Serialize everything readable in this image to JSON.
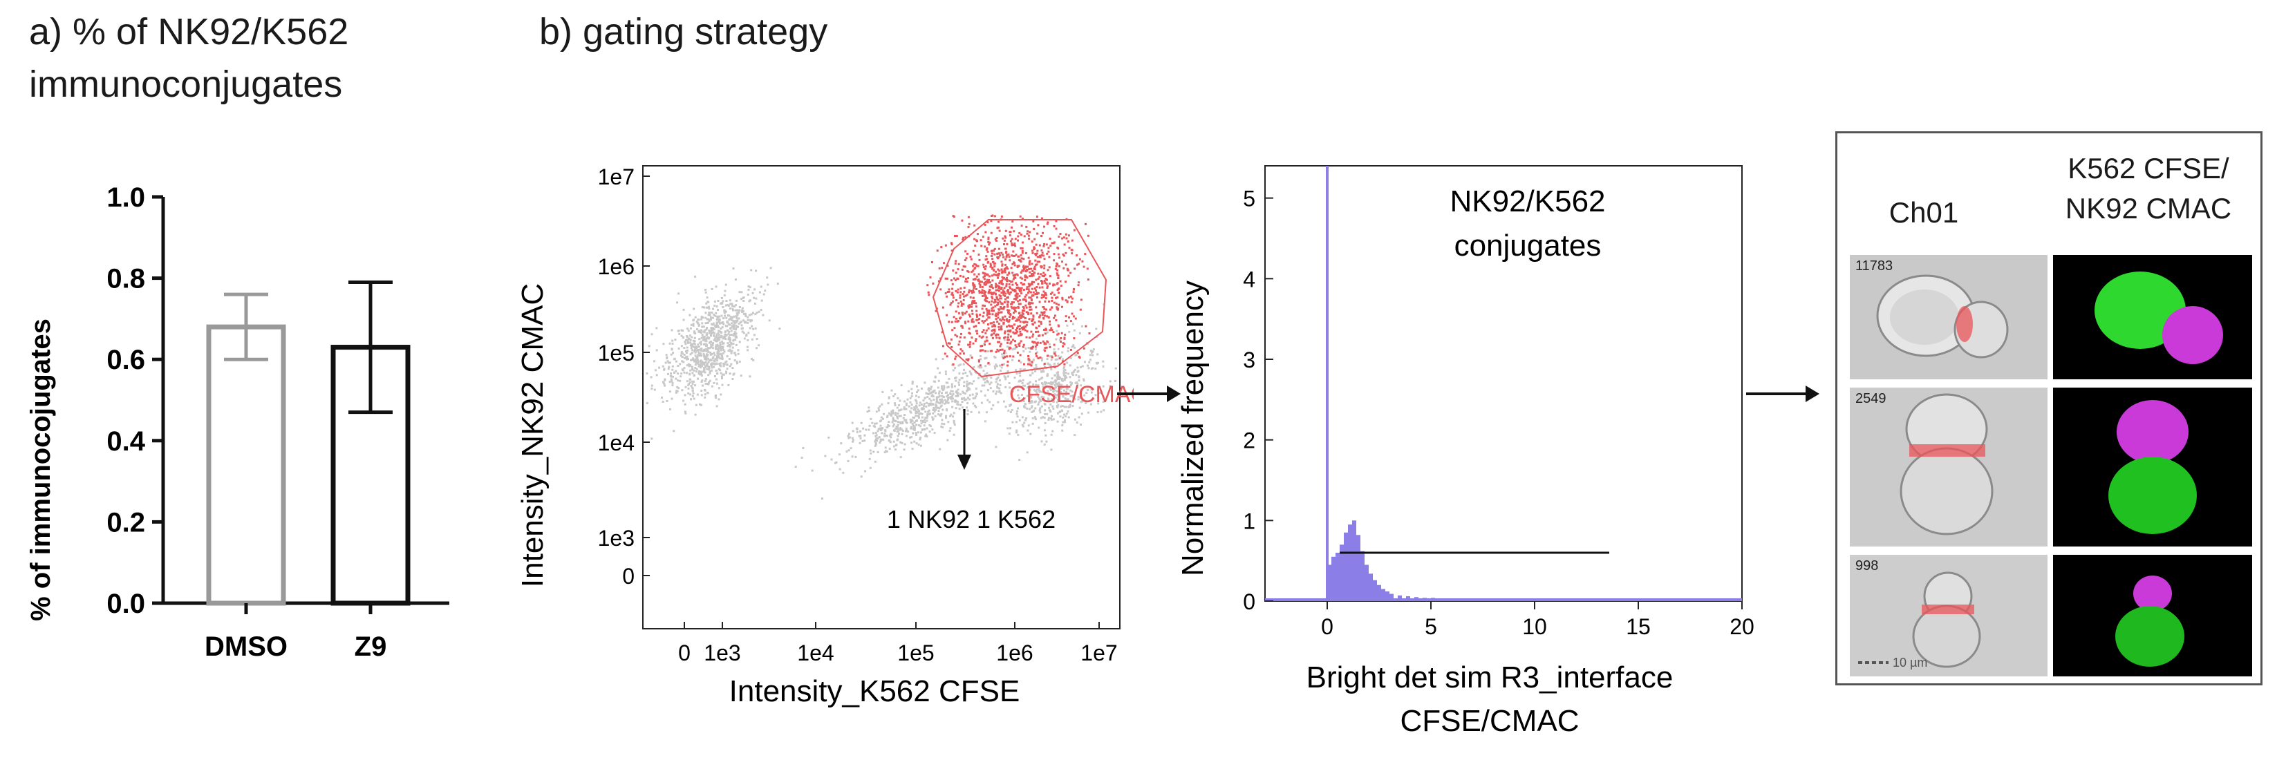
{
  "panel_a": {
    "title_line1": "a) % of NK92/K562",
    "title_line2": "immunoconjugates"
  },
  "panel_b": {
    "title": "b) gating strategy"
  },
  "chart_data": [
    {
      "type": "bar",
      "title": "% of NK92/K562 immunoconjugates",
      "xlabel": "",
      "ylabel": "% of immunocojugates",
      "categories": [
        "DMSO",
        "Z9"
      ],
      "values": [
        0.68,
        0.63
      ],
      "error_low": [
        0.6,
        0.47
      ],
      "error_high": [
        0.76,
        0.79
      ],
      "bar_edge_colors": [
        "#999999",
        "#111111"
      ],
      "ylim": [
        0,
        1.0
      ],
      "yticks": [
        "0.0",
        "0.2",
        "0.4",
        "0.6",
        "0.8",
        "1.0"
      ],
      "ytick_values": [
        0,
        0.2,
        0.4,
        0.6,
        0.8,
        1.0
      ]
    },
    {
      "type": "scatter",
      "title": "",
      "xlabel": "Intensity_K562 CFSE",
      "ylabel": "Intensity_NK92 CMAC",
      "xscale": "log",
      "yscale": "log",
      "xticks": [
        "0",
        "1e3",
        "1e4",
        "1e5",
        "1e6",
        "1e7"
      ],
      "yticks": [
        "0",
        "1e3",
        "1e4",
        "1e5",
        "1e6",
        "1e7"
      ],
      "gate_label": "CFSE/CMAC",
      "gate_color": "#e8565a",
      "background_color": "#c8c8c8",
      "annotation": "1 NK92 1 K562"
    },
    {
      "type": "histogram",
      "title": "",
      "xlabel_line1": "Bright det sim R3_interface",
      "xlabel_line2": "CFSE/CMAC",
      "ylabel": "Normalized frequency",
      "xlim": [
        -3,
        20
      ],
      "ylim": [
        0,
        5.4
      ],
      "xticks": [
        "0",
        "5",
        "10",
        "15",
        "20"
      ],
      "xtick_values": [
        0,
        5,
        10,
        15,
        20
      ],
      "yticks": [
        "0",
        "1",
        "2",
        "3",
        "4",
        "5"
      ],
      "ytick_values": [
        0,
        1,
        2,
        3,
        4,
        5
      ],
      "series_color": "#8b7ee6",
      "gate_label_line1": "NK92/K562",
      "gate_label_line2": "conjugates",
      "gate_range": [
        0.6,
        13.6
      ],
      "gate_level": 0.6,
      "bins": [
        {
          "x": 0.0,
          "y": 0.45
        },
        {
          "x": 0.2,
          "y": 0.55
        },
        {
          "x": 0.4,
          "y": 0.6
        },
        {
          "x": 0.6,
          "y": 0.7
        },
        {
          "x": 0.8,
          "y": 0.85
        },
        {
          "x": 1.0,
          "y": 0.95
        },
        {
          "x": 1.2,
          "y": 1.0
        },
        {
          "x": 1.4,
          "y": 0.82
        },
        {
          "x": 1.6,
          "y": 0.62
        },
        {
          "x": 1.8,
          "y": 0.45
        },
        {
          "x": 2.0,
          "y": 0.34
        },
        {
          "x": 2.2,
          "y": 0.26
        },
        {
          "x": 2.4,
          "y": 0.2
        },
        {
          "x": 2.6,
          "y": 0.15
        },
        {
          "x": 2.8,
          "y": 0.12
        },
        {
          "x": 3.0,
          "y": 0.09
        },
        {
          "x": 3.4,
          "y": 0.07
        },
        {
          "x": 3.8,
          "y": 0.06
        },
        {
          "x": 4.2,
          "y": 0.05
        },
        {
          "x": 4.6,
          "y": 0.04
        },
        {
          "x": 5.0,
          "y": 0.04
        },
        {
          "x": 5.6,
          "y": 0.03
        },
        {
          "x": 6.2,
          "y": 0.03
        },
        {
          "x": 6.8,
          "y": 0.02
        },
        {
          "x": 7.4,
          "y": 0.02
        },
        {
          "x": 8.2,
          "y": 0.01
        },
        {
          "x": 9.0,
          "y": 0.01
        }
      ],
      "spike_x": 0.0
    }
  ],
  "cell_panel": {
    "header_left": "Ch01",
    "header_right_line1": "K562 CFSE/",
    "header_right_line2": "NK92 CMAC",
    "rows": [
      {
        "id": "11783"
      },
      {
        "id": "2549"
      },
      {
        "id": "998",
        "scale": "10 µm"
      }
    ]
  }
}
